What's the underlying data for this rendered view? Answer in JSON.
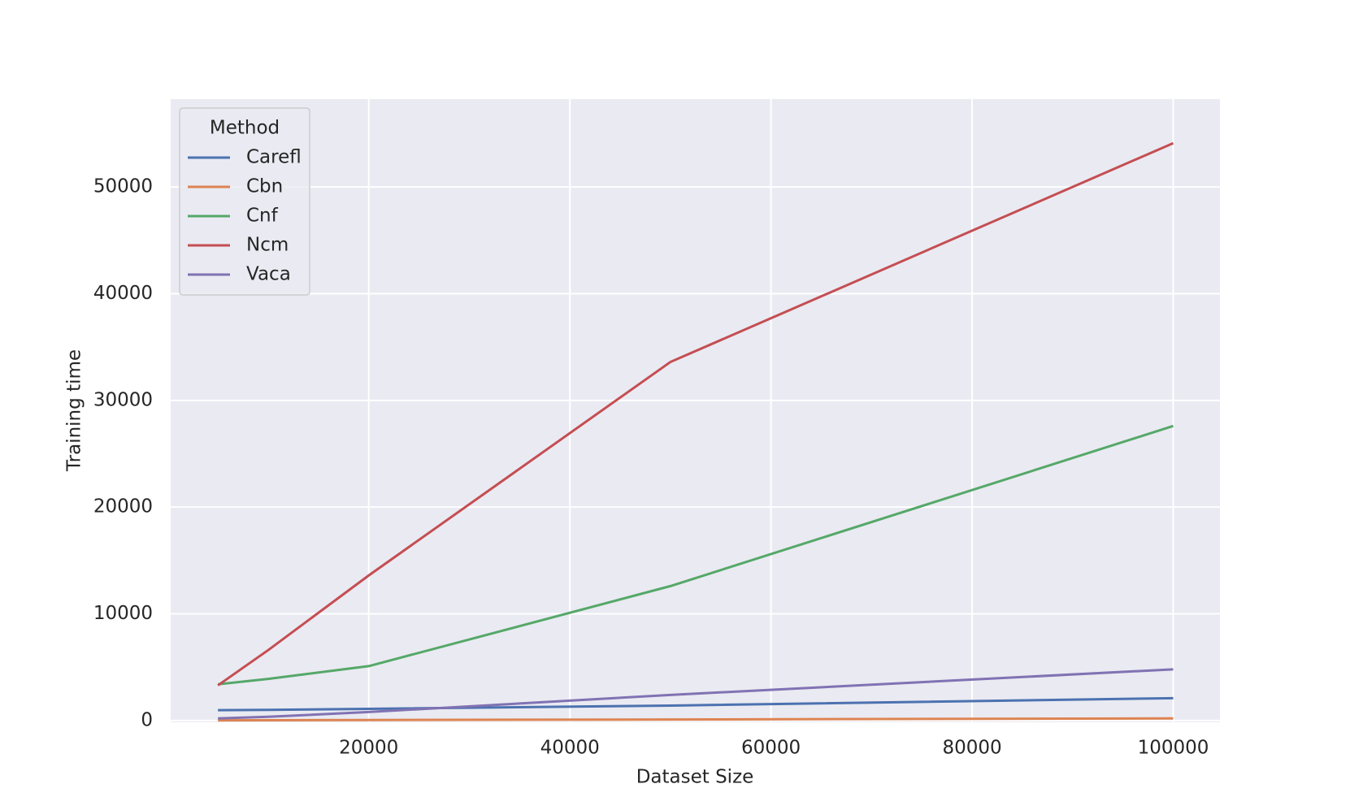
{
  "chart_data": {
    "type": "line",
    "x_label": "Dataset Size",
    "y_label": "Training time",
    "legend_title": "Method",
    "legend": "upper left",
    "grid": true,
    "x": [
      5000,
      10000,
      20000,
      50000,
      100000
    ],
    "series": [
      {
        "name": "Carefl",
        "color": "#4c72b0",
        "values": [
          970,
          1000,
          1100,
          1400,
          2100
        ]
      },
      {
        "name": "Cbn",
        "color": "#dd8452",
        "values": [
          20,
          30,
          50,
          100,
          200
        ]
      },
      {
        "name": "Cnf",
        "color": "#55a868",
        "values": [
          3400,
          3900,
          5100,
          12600,
          27600
        ]
      },
      {
        "name": "Ncm",
        "color": "#c44e52",
        "values": [
          3300,
          6600,
          13600,
          33600,
          54100
        ]
      },
      {
        "name": "Vaca",
        "color": "#8172b3",
        "values": [
          200,
          350,
          800,
          2400,
          4800
        ]
      }
    ],
    "xlim": [
      300,
      104650
    ],
    "xticks": [
      20000,
      40000,
      60000,
      80000,
      100000
    ],
    "ylim": [
      -160,
      58230
    ],
    "yticks": [
      0,
      10000,
      20000,
      30000,
      40000,
      50000
    ]
  }
}
